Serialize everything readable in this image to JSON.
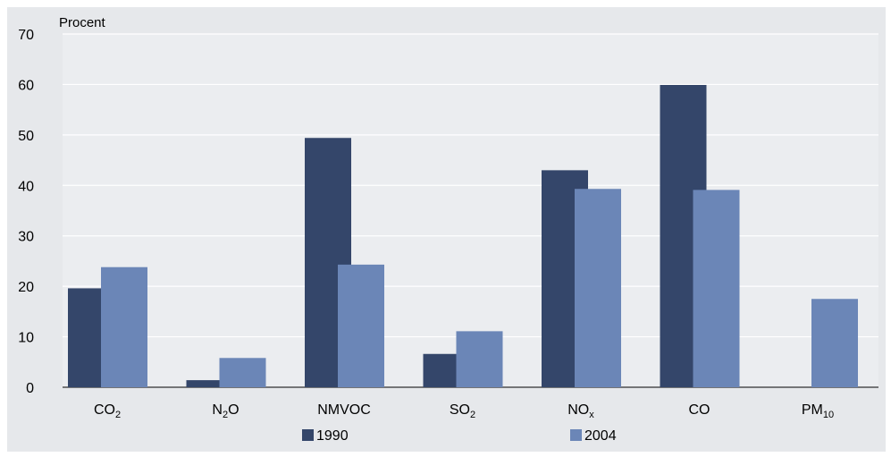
{
  "colors": {
    "background": "#e6e8eb",
    "plot_area": "#ebedf0",
    "gridline": "#ffffff",
    "series_1990": "#34466a",
    "series_2004": "#6b86b7"
  },
  "chart_data": {
    "type": "bar",
    "title": "",
    "xlabel": "",
    "ylabel": "Procent",
    "ylim": [
      0,
      70
    ],
    "yticks": [
      0,
      10,
      20,
      30,
      40,
      50,
      60,
      70
    ],
    "grid": true,
    "legend_position": "bottom",
    "categories": [
      {
        "main": "CO",
        "sub": "2"
      },
      {
        "main": "N",
        "sub": "2",
        "after": "O"
      },
      {
        "main": "NMVOC"
      },
      {
        "main": "SO",
        "sub": "2"
      },
      {
        "main": "NO",
        "sub": "x"
      },
      {
        "main": "CO"
      },
      {
        "main": "PM",
        "sub": "10"
      }
    ],
    "series": [
      {
        "name": "1990",
        "values": [
          19.6,
          1.4,
          49.4,
          6.6,
          43.0,
          59.9,
          null
        ]
      },
      {
        "name": "2004",
        "values": [
          23.8,
          5.8,
          24.3,
          11.1,
          39.3,
          39.1,
          17.5
        ]
      }
    ]
  }
}
